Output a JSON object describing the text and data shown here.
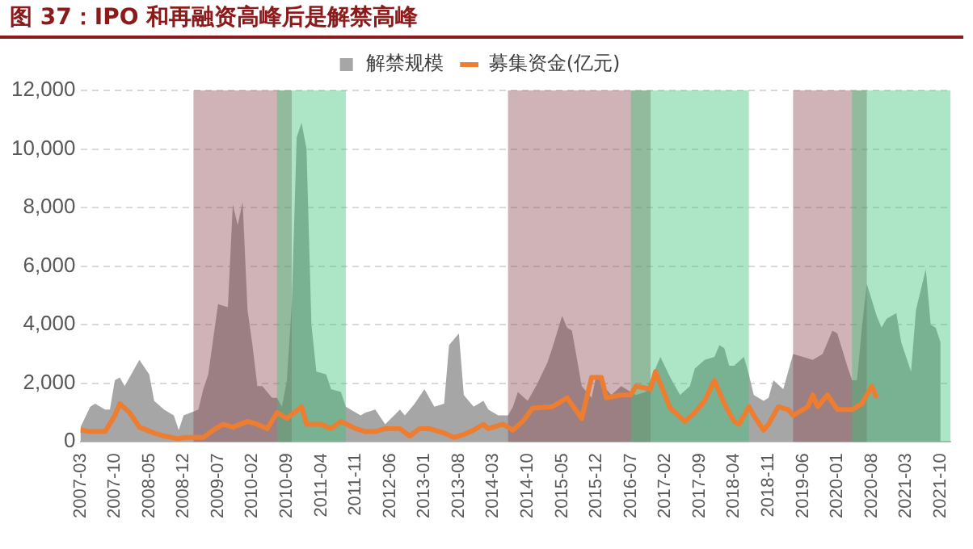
{
  "chart_data": {
    "type": "area",
    "title": "图 37：IPO 和再融资高峰后是解禁高峰",
    "legend": "top",
    "grid": "y",
    "xlim": [
      "2007-03",
      "2021-12"
    ],
    "xticks": [
      "2007-03",
      "2007-10",
      "2008-05",
      "2008-12",
      "2009-07",
      "2010-02",
      "2010-09",
      "2011-04",
      "2011-11",
      "2012-06",
      "2013-01",
      "2013-08",
      "2014-03",
      "2014-10",
      "2015-05",
      "2015-12",
      "2016-07",
      "2017-02",
      "2017-09",
      "2018-04",
      "2018-11",
      "2019-06",
      "2020-01",
      "2020-08",
      "2021-03",
      "2021-10"
    ],
    "ylim": [
      0,
      12000
    ],
    "yticks": [
      0,
      {
        "value": 2000,
        "label": "2,000"
      },
      {
        "value": 4000,
        "label": "4,000"
      },
      {
        "value": 6000,
        "label": "6,000"
      },
      {
        "value": 8000,
        "label": "8,000"
      },
      {
        "value": 10000,
        "label": "10,000"
      },
      {
        "value": 12000,
        "label": "12,000"
      }
    ],
    "series": [
      {
        "name": "解禁规模",
        "color": "#a6a6a6",
        "x": [
          "2007-03",
          "2007-05",
          "2007-06",
          "2007-08",
          "2007-09",
          "2007-10",
          "2007-11",
          "2007-12",
          "2008-02",
          "2008-03",
          "2008-05",
          "2008-06",
          "2008-08",
          "2008-10",
          "2008-11",
          "2008-12",
          "2009-03",
          "2009-04",
          "2009-05",
          "2009-06",
          "2009-07",
          "2009-09",
          "2009-10",
          "2009-11",
          "2009-12",
          "2010-01",
          "2010-02",
          "2010-03",
          "2010-04",
          "2010-06",
          "2010-07",
          "2010-08",
          "2010-09",
          "2010-10",
          "2010-11",
          "2010-12",
          "2011-01",
          "2011-02",
          "2011-03",
          "2011-05",
          "2011-06",
          "2011-08",
          "2011-09",
          "2011-12",
          "2012-01",
          "2012-03",
          "2012-05",
          "2012-08",
          "2012-09",
          "2012-11",
          "2013-01",
          "2013-03",
          "2013-05",
          "2013-06",
          "2013-08",
          "2013-09",
          "2013-11",
          "2014-01",
          "2014-02",
          "2014-04",
          "2014-06",
          "2014-07",
          "2014-08",
          "2014-10",
          "2014-12",
          "2015-02",
          "2015-03",
          "2015-05",
          "2015-06",
          "2015-07",
          "2015-09",
          "2015-11",
          "2015-12",
          "2016-02",
          "2016-03",
          "2016-05",
          "2016-07",
          "2016-08",
          "2016-10",
          "2016-12",
          "2017-01",
          "2017-03",
          "2017-05",
          "2017-07",
          "2017-08",
          "2017-10",
          "2017-12",
          "2018-01",
          "2018-02",
          "2018-03",
          "2018-04",
          "2018-06",
          "2018-07",
          "2018-08",
          "2018-10",
          "2018-11",
          "2018-12",
          "2019-02",
          "2019-04",
          "2019-06",
          "2019-08",
          "2019-10",
          "2019-12",
          "2020-01",
          "2020-03",
          "2020-04",
          "2020-05",
          "2020-06",
          "2020-07",
          "2020-09",
          "2020-10",
          "2020-11",
          "2021-01",
          "2021-02",
          "2021-04",
          "2021-05",
          "2021-07",
          "2021-08",
          "2021-09",
          "2021-10"
        ],
        "values": [
          500,
          1200,
          1300,
          1100,
          1100,
          2100,
          2200,
          1900,
          2500,
          2800,
          2300,
          1400,
          1100,
          900,
          400,
          900,
          1100,
          1800,
          2300,
          3500,
          4700,
          4600,
          8100,
          7400,
          8200,
          4500,
          3300,
          1900,
          1900,
          1500,
          1500,
          1200,
          2100,
          4700,
          10400,
          10900,
          10000,
          4000,
          2400,
          2300,
          1800,
          1700,
          1200,
          900,
          1000,
          1100,
          600,
          1100,
          900,
          1300,
          1800,
          1200,
          1300,
          3300,
          3700,
          1600,
          1200,
          1400,
          1100,
          900,
          900,
          1200,
          1700,
          1400,
          2000,
          2700,
          3200,
          4300,
          3900,
          3800,
          1900,
          1500,
          2300,
          1800,
          1600,
          1900,
          1700,
          1600,
          1700,
          2500,
          2900,
          2200,
          1600,
          1900,
          2500,
          2800,
          2900,
          3300,
          3200,
          2600,
          2600,
          2900,
          2300,
          1600,
          1400,
          1500,
          2100,
          1800,
          3000,
          2900,
          2800,
          3000,
          3800,
          3700,
          2600,
          2100,
          2100,
          3900,
          5400,
          4300,
          3900,
          4200,
          4400,
          3400,
          2400,
          4500,
          5900,
          4000,
          3900,
          3400
        ]
      },
      {
        "name": "募集资金(亿元)",
        "type": "line",
        "color": "#ed7d31",
        "x": [
          "2007-03",
          "2007-05",
          "2007-08",
          "2007-10",
          "2007-11",
          "2008-01",
          "2008-03",
          "2008-06",
          "2008-08",
          "2008-11",
          "2008-12",
          "2009-04",
          "2009-06",
          "2009-08",
          "2009-10",
          "2010-01",
          "2010-03",
          "2010-05",
          "2010-07",
          "2010-09",
          "2010-12",
          "2011-01",
          "2011-04",
          "2011-06",
          "2011-08",
          "2011-11",
          "2012-01",
          "2012-03",
          "2012-05",
          "2012-08",
          "2012-10",
          "2012-12",
          "2013-02",
          "2013-05",
          "2013-07",
          "2013-09",
          "2013-11",
          "2014-01",
          "2014-02",
          "2014-05",
          "2014-07",
          "2014-09",
          "2014-11",
          "2015-03",
          "2015-06",
          "2015-09",
          "2015-11",
          "2016-01",
          "2016-02",
          "2016-05",
          "2016-07",
          "2016-08",
          "2016-11",
          "2016-12",
          "2017-03",
          "2017-06",
          "2017-08",
          "2017-10",
          "2017-12",
          "2018-02",
          "2018-04",
          "2018-05",
          "2018-07",
          "2018-08",
          "2018-10",
          "2018-11",
          "2019-01",
          "2019-03",
          "2019-04",
          "2019-07",
          "2019-08",
          "2019-09",
          "2019-11",
          "2020-01",
          "2020-04",
          "2020-06",
          "2020-08",
          "2020-09"
        ],
        "values": [
          400,
          350,
          350,
          900,
          1300,
          1000,
          500,
          300,
          200,
          100,
          150,
          150,
          400,
          600,
          500,
          700,
          600,
          450,
          1000,
          800,
          1200,
          600,
          600,
          450,
          700,
          450,
          350,
          350,
          450,
          450,
          200,
          450,
          450,
          300,
          150,
          250,
          400,
          600,
          450,
          600,
          400,
          700,
          1150,
          1200,
          1500,
          800,
          2200,
          2200,
          1500,
          1600,
          1600,
          1900,
          1800,
          2400,
          1150,
          700,
          1000,
          1400,
          2100,
          1300,
          700,
          600,
          1200,
          900,
          400,
          600,
          1200,
          1100,
          900,
          1200,
          1600,
          1200,
          1600,
          1100,
          1100,
          1300,
          1900,
          1500
        ]
      }
    ],
    "bands": [
      {
        "axis": "x",
        "from": "2009-02",
        "to": "2010-10",
        "color": "#8e4a50"
      },
      {
        "axis": "x",
        "from": "2010-07",
        "to": "2011-09",
        "color": "#3cc47a"
      },
      {
        "axis": "x",
        "from": "2014-06",
        "to": "2016-11",
        "color": "#8e4a50"
      },
      {
        "axis": "x",
        "from": "2016-07",
        "to": "2018-07",
        "color": "#3cc47a"
      },
      {
        "axis": "x",
        "from": "2019-04",
        "to": "2020-07",
        "color": "#8e4a50"
      },
      {
        "axis": "x",
        "from": "2020-04",
        "to": "2021-12",
        "color": "#3cc47a"
      }
    ]
  }
}
